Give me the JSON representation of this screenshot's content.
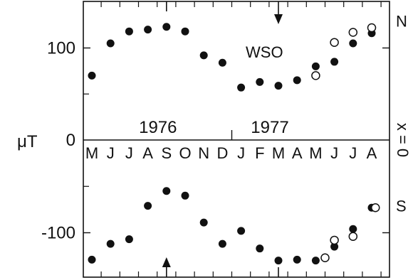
{
  "chart_data": {
    "type": "scatter",
    "title": "",
    "ylabel": "μT",
    "xlabel": "",
    "annotation": "WSO",
    "year_labels": [
      {
        "text": "1976",
        "after_month_index": 4
      },
      {
        "text": "1977",
        "after_month_index": 10
      }
    ],
    "months": [
      "M",
      "J",
      "J",
      "A",
      "S",
      "O",
      "N",
      "D",
      "J",
      "F",
      "M",
      "A",
      "M",
      "J",
      "J",
      "A"
    ],
    "xlim": [
      -0.5,
      16
    ],
    "ylim": [
      -150,
      150
    ],
    "yticks": [
      {
        "value": 100,
        "label": "100"
      },
      {
        "value": 0,
        "label": "0"
      },
      {
        "value": -100,
        "label": "-100"
      }
    ],
    "zero_axis_label": "x = 0",
    "hemisphere_labels": [
      {
        "text": "N",
        "value": 100
      },
      {
        "text": "S",
        "value": -100
      }
    ],
    "markers": [
      {
        "direction": "down",
        "month_index": 10,
        "edge": "top"
      },
      {
        "direction": "up",
        "month_index": 4,
        "edge": "bottom"
      }
    ],
    "series": [
      {
        "name": "",
        "marker": "filled",
        "points": [
          {
            "x": 0,
            "y": 70
          },
          {
            "x": 1,
            "y": 105
          },
          {
            "x": 2,
            "y": 118
          },
          {
            "x": 3,
            "y": 120
          },
          {
            "x": 4,
            "y": 123
          },
          {
            "x": 5,
            "y": 118
          },
          {
            "x": 6,
            "y": 92
          },
          {
            "x": 7,
            "y": 84
          },
          {
            "x": 8,
            "y": 57
          },
          {
            "x": 9,
            "y": 63
          },
          {
            "x": 10,
            "y": 59
          },
          {
            "x": 11,
            "y": 65
          },
          {
            "x": 12,
            "y": 80
          },
          {
            "x": 13,
            "y": 85
          },
          {
            "x": 14,
            "y": 105
          },
          {
            "x": 15,
            "y": 116
          },
          {
            "x": 0,
            "y": -129
          },
          {
            "x": 1,
            "y": -112
          },
          {
            "x": 2,
            "y": -107
          },
          {
            "x": 3,
            "y": -71
          },
          {
            "x": 4,
            "y": -55
          },
          {
            "x": 5,
            "y": -60
          },
          {
            "x": 6,
            "y": -89
          },
          {
            "x": 7,
            "y": -112
          },
          {
            "x": 8,
            "y": -98
          },
          {
            "x": 9,
            "y": -117
          },
          {
            "x": 10,
            "y": -130
          },
          {
            "x": 11,
            "y": -129
          },
          {
            "x": 12,
            "y": -130
          },
          {
            "x": 13,
            "y": -115
          },
          {
            "x": 14,
            "y": -96
          },
          {
            "x": 15,
            "y": -73
          }
        ]
      },
      {
        "name": "",
        "marker": "open",
        "points": [
          {
            "x": 12,
            "y": 70
          },
          {
            "x": 13,
            "y": 106
          },
          {
            "x": 14,
            "y": 117
          },
          {
            "x": 15,
            "y": 122
          },
          {
            "x": 12.5,
            "y": -127
          },
          {
            "x": 13,
            "y": -108
          },
          {
            "x": 14,
            "y": -104
          },
          {
            "x": 15.2,
            "y": -73
          }
        ]
      }
    ]
  }
}
